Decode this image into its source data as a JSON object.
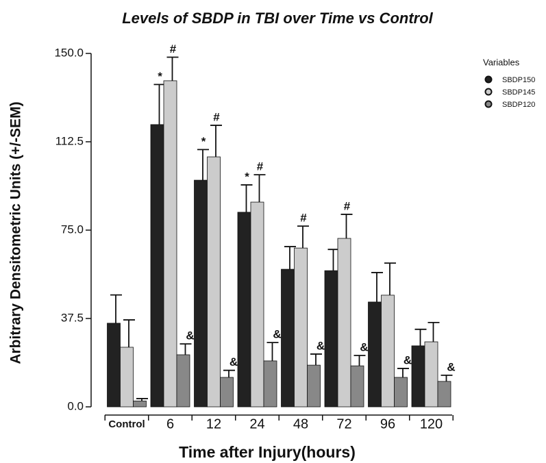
{
  "chart_data": {
    "type": "bar",
    "title": "Levels of SBDP in TBI over Time vs Control",
    "x_label": "Time after Injury(hours)",
    "y_label": "Arbitrary Densitometric Units (+/-SEM)",
    "legend_title": "Variables",
    "legend_position": "top-right",
    "categories": [
      "Control",
      "6",
      "12",
      "24",
      "48",
      "72",
      "96",
      "120"
    ],
    "ylim": [
      0,
      150
    ],
    "yticks": [
      {
        "value": 0,
        "label": "0.0"
      },
      37.5,
      {
        "value": 75,
        "label": "75.0"
      },
      112.5,
      {
        "value": 150,
        "label": "150.0"
      }
    ],
    "series": [
      {
        "name": "SBDP150",
        "color": "#222222",
        "values": [
          35.5,
          119.8,
          96.2,
          82.6,
          58.4,
          57.8,
          44.5,
          25.9
        ],
        "errors": [
          12,
          17,
          13,
          11.6,
          9.6,
          9,
          12.5,
          7
        ],
        "annotations": [
          null,
          "*",
          "*",
          "*",
          null,
          null,
          null,
          null
        ]
      },
      {
        "name": "SBDP145",
        "color": "#cccccc",
        "values": [
          25.3,
          138.4,
          106.1,
          86.9,
          67.4,
          71.5,
          47.4,
          27.6
        ],
        "errors": [
          11.6,
          10,
          13.4,
          11.6,
          9.3,
          10.2,
          13.6,
          8.2
        ],
        "annotations": [
          null,
          "#",
          "#",
          "#",
          "#",
          "#",
          null,
          null
        ]
      },
      {
        "name": "SBDP120",
        "color": "#888888",
        "values": [
          2.5,
          22.1,
          12.5,
          19.5,
          17.7,
          17.4,
          12.5,
          10.8
        ],
        "errors": [
          1,
          4.6,
          3,
          7.8,
          4.7,
          4.4,
          3.8,
          2.6
        ],
        "annotations": [
          null,
          "&",
          "&",
          "&",
          "&",
          "&",
          "&",
          "&"
        ]
      }
    ]
  }
}
